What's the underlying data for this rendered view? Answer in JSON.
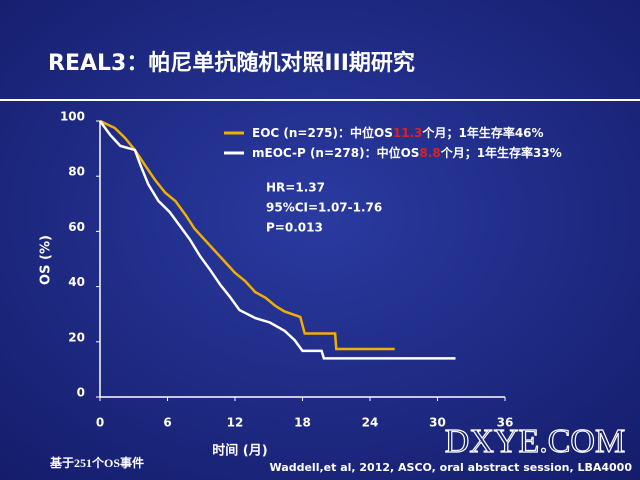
{
  "chart_data": {
    "type": "line",
    "title": "REAL3：帕尼单抗随机对照III期研究",
    "xlabel": "时间 (月)",
    "ylabel": "OS (%)",
    "xlim": [
      0,
      36
    ],
    "ylim": [
      0,
      100
    ],
    "xticks": [
      0,
      6,
      12,
      18,
      24,
      30,
      36
    ],
    "yticks": [
      0,
      20,
      40,
      60,
      80,
      100
    ],
    "series": [
      {
        "name": "EOC (n=275)",
        "color": "#f0b000",
        "legend_prefix": "：中位OS",
        "median": 11.3,
        "median_color": "#e02020",
        "legend_suffix": "个月；1年生存率46%",
        "x": [
          0,
          1.3,
          2.2,
          3.1,
          4,
          4.9,
          5.8,
          6.7,
          7.6,
          8.4,
          9.3,
          10.2,
          11.1,
          12,
          12.9,
          13.8,
          14.7,
          15.6,
          16.4,
          17.8,
          18.2,
          20.9,
          21,
          26.2
        ],
        "values": [
          100,
          97.5,
          94,
          89.5,
          84,
          78.6,
          74,
          71,
          66,
          61,
          57,
          53,
          49,
          45,
          42,
          38,
          36,
          33,
          31,
          29,
          23,
          23,
          17.4,
          17.4
        ]
      },
      {
        "name": "mEOC-P (n=278)",
        "color": "#ffffff",
        "legend_prefix": "：中位OS",
        "median": 8.8,
        "median_color": "#e02020",
        "legend_suffix": "个月；1年生存率33%",
        "x": [
          0,
          0.9,
          1.8,
          3.1,
          3.6,
          4.3,
          5.2,
          6.2,
          7.1,
          8,
          8.9,
          9.8,
          10.7,
          11.6,
          12.4,
          13.8,
          15.1,
          16.4,
          17.3,
          18,
          19.7,
          19.9,
          31.6
        ],
        "values": [
          100,
          95,
          91,
          89.5,
          84,
          77,
          71,
          67,
          62,
          57,
          51,
          46,
          40.6,
          36,
          31.5,
          28.6,
          27,
          24,
          20.6,
          16.7,
          16.7,
          14,
          14
        ]
      }
    ],
    "annotations": [
      "HR=1.37",
      "95%CI=1.07-1.76",
      "P=0.013"
    ],
    "footnote": "基于251个OS事件",
    "source": "Waddell,et al, 2012, ASCO, oral abstract session, LBA4000",
    "watermark": "DXYE.COM"
  }
}
